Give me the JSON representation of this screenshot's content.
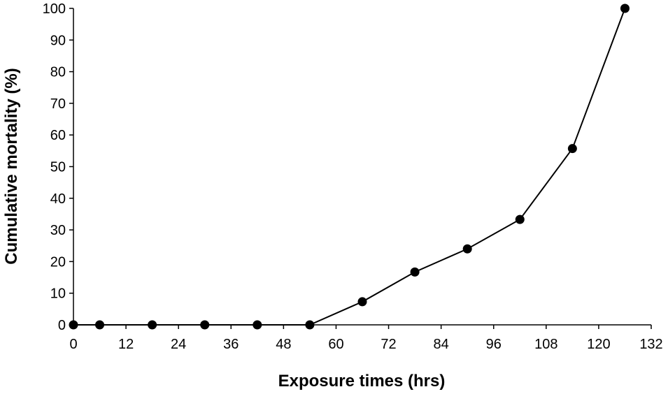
{
  "chart_data": {
    "type": "line",
    "title": "",
    "xlabel": "Exposure times (hrs)",
    "ylabel": "Cumulative mortality (%)",
    "xlim": [
      0,
      132
    ],
    "ylim": [
      0,
      100
    ],
    "x_ticks": [
      0,
      12,
      24,
      36,
      48,
      60,
      72,
      84,
      96,
      108,
      120,
      132
    ],
    "y_ticks": [
      0,
      10,
      20,
      30,
      40,
      50,
      60,
      70,
      80,
      90,
      100
    ],
    "grid": false,
    "legend": "none",
    "marker": "filled-circle",
    "color": "#000000",
    "series": [
      {
        "x": [
          0,
          6,
          18,
          30,
          42,
          54,
          66,
          78,
          90,
          102,
          114,
          126
        ],
        "y": [
          0,
          0,
          0,
          0,
          0,
          0,
          7.3,
          16.7,
          24,
          33.3,
          55.7,
          100
        ]
      }
    ]
  }
}
